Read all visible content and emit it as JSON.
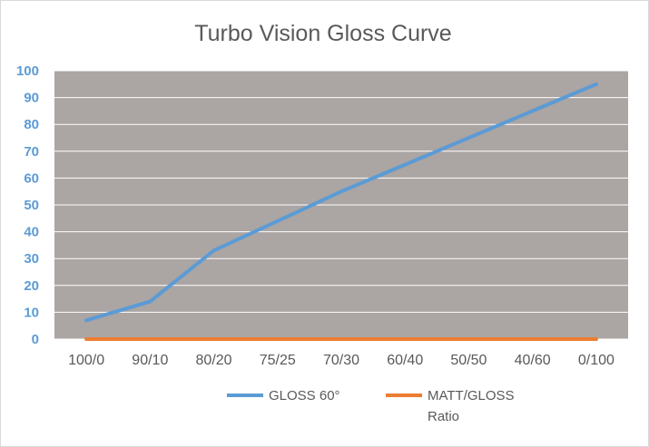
{
  "chart_data": {
    "type": "line",
    "title": "Turbo Vision Gloss Curve",
    "xlabel": "",
    "ylabel": "",
    "categories": [
      "100/0",
      "90/10",
      "80/20",
      "75/25",
      "70/30",
      "60/40",
      "50/50",
      "40/60",
      "0/100"
    ],
    "ylim": [
      0,
      100
    ],
    "yticks": [
      0,
      10,
      20,
      30,
      40,
      50,
      60,
      70,
      80,
      90,
      100
    ],
    "grid": true,
    "legend_position": "bottom",
    "plot_background": "#aba5a3",
    "gridline_color": "#ffffff",
    "series": [
      {
        "name": "GLOSS 60°",
        "color": "#5b9bd5",
        "values": [
          7,
          14,
          33,
          44,
          55,
          65,
          75,
          85,
          95
        ]
      },
      {
        "name": "MATT/GLOSS Ratio",
        "legend_lines": [
          "MATT/GLOSS",
          "Ratio"
        ],
        "color": "#ed7d31",
        "values": [
          0,
          0,
          0,
          0,
          0,
          0,
          0,
          0,
          0
        ]
      }
    ]
  }
}
